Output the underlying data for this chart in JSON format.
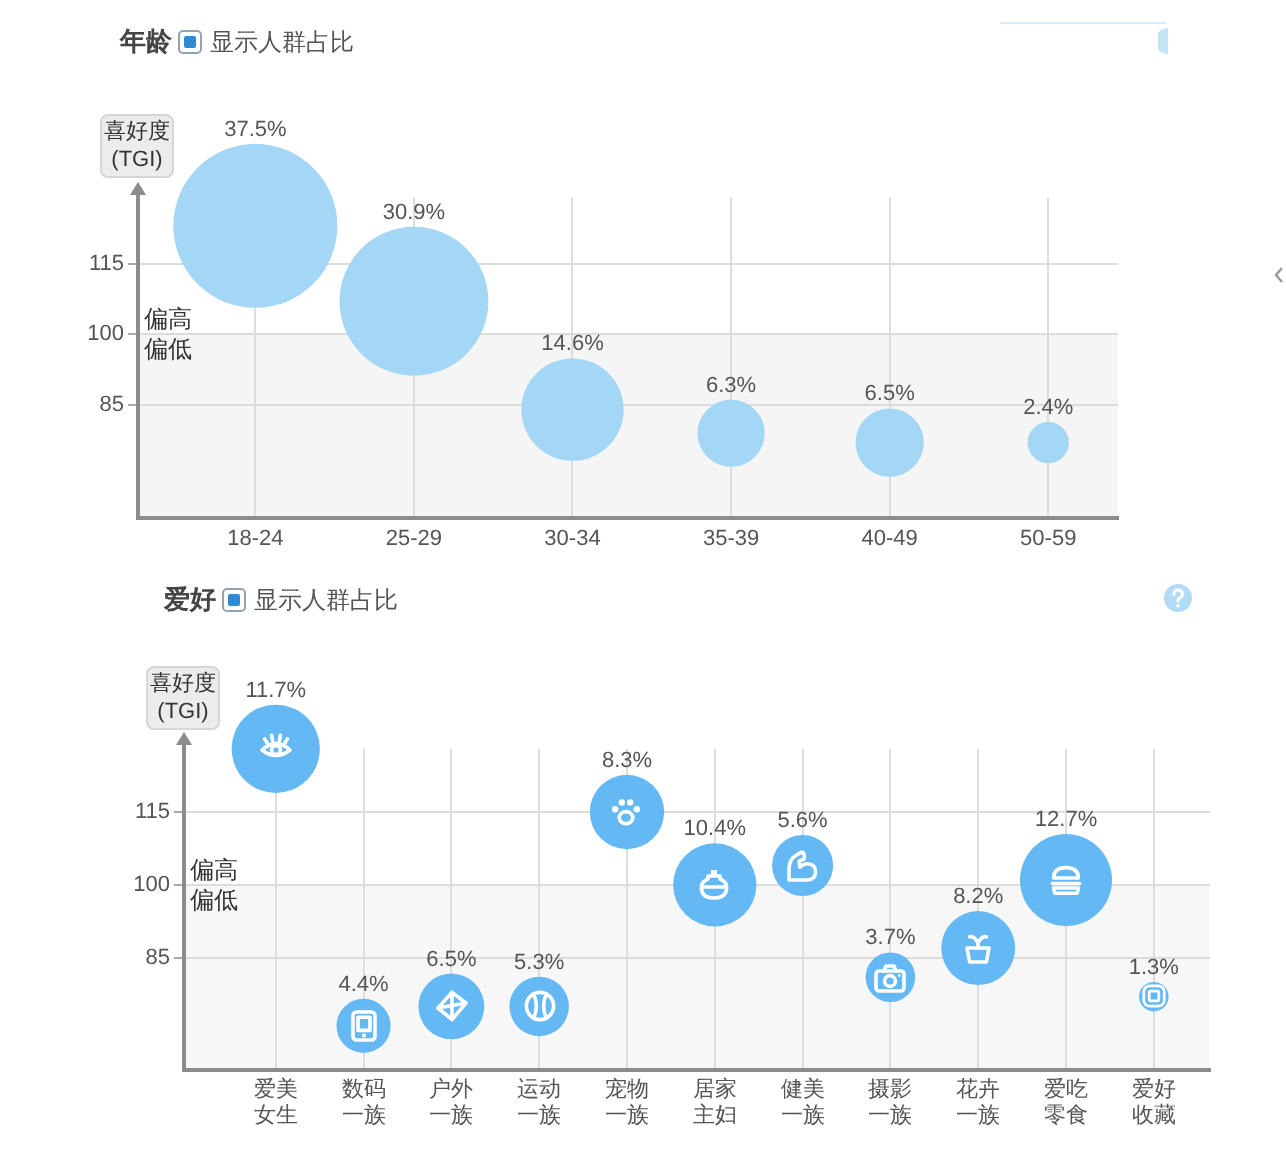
{
  "chart_data": [
    {
      "type": "bubble",
      "title": "年龄",
      "annotations": [
        "显示人群占比",
        {
          "text": "偏高",
          "y": 100
        }
      ],
      "ylabel": "喜好度 (TGI)",
      "categories": [
        "18-24",
        "25-29",
        "30-34",
        "35-39",
        "40-49",
        "50-59"
      ],
      "values": [
        123,
        107,
        84,
        79,
        77,
        77
      ],
      "sizes": [
        37.5,
        30.9,
        14.6,
        6.3,
        6.5,
        2.4
      ],
      "value_labels": [
        "37.5%",
        "30.9%",
        "14.6%",
        "6.3%",
        "6.5%",
        "2.4%"
      ],
      "color": "#a4d6f5",
      "ylim": [
        61,
        129
      ],
      "yticks": [
        85,
        100,
        115
      ],
      "grid": true,
      "bands": [
        {
          "axis": "y",
          "from": 61,
          "to": 100,
          "label": "偏低",
          "color": "#f5f5f5"
        }
      ]
    },
    {
      "type": "bubble",
      "title": "爱好",
      "annotations": [
        "显示人群占比",
        {
          "text": "偏高",
          "y": 100
        }
      ],
      "ylabel": "喜好度 (TGI)",
      "categories": [
        "爱美女生",
        "数码一族",
        "户外一族",
        "运动一族",
        "宠物一族",
        "居家主妇",
        "健美一族",
        "摄影一族",
        "花卉一族",
        "爱吃零食",
        "爱好收藏"
      ],
      "values": [
        128,
        71,
        75,
        75,
        115,
        100,
        104,
        81,
        87,
        101,
        77
      ],
      "sizes": [
        11.7,
        4.4,
        6.5,
        5.3,
        8.3,
        10.4,
        5.6,
        3.7,
        8.2,
        12.7,
        1.3
      ],
      "value_labels": [
        "11.7%",
        "4.4%",
        "6.5%",
        "5.3%",
        "8.3%",
        "10.4%",
        "5.6%",
        "3.7%",
        "8.2%",
        "12.7%",
        "1.3%"
      ],
      "color": "#64b9f5",
      "ylim": [
        62,
        128
      ],
      "yticks": [
        85,
        100,
        115
      ],
      "grid": true,
      "bands": [
        {
          "axis": "y",
          "from": 62,
          "to": 100,
          "label": "偏低",
          "color": "#f7f7f7"
        }
      ]
    }
  ]
}
